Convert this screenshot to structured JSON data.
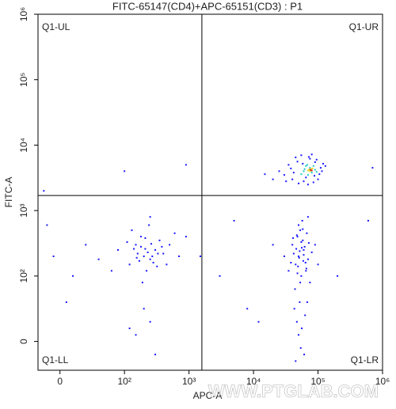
{
  "chart_data": {
    "type": "scatter",
    "title": "FITC-65147(CD4)+APC-65151(CD3) : P1",
    "x_label": "APC-A",
    "y_label": "FITC-A",
    "scale": "biexponential",
    "xlim": [
      -34,
      1000000
    ],
    "ylim": [
      -44,
      1000000
    ],
    "xticks": [
      0,
      {
        "value": 100,
        "label": "10²"
      },
      {
        "value": 1000,
        "label": "10³"
      },
      {
        "value": 10000,
        "label": "10⁴"
      },
      {
        "value": 100000,
        "label": "10⁵"
      },
      {
        "value": 1000000,
        "label": "10⁶"
      }
    ],
    "yticks": [
      0,
      {
        "value": 100,
        "label": "10²"
      },
      {
        "value": 1000,
        "label": "10³"
      },
      {
        "value": 10000,
        "label": "10⁴"
      },
      {
        "value": 100000,
        "label": "10⁵"
      },
      {
        "value": 1000000,
        "label": "10⁶"
      }
    ],
    "gate": {
      "x": 1585,
      "y": 1700
    },
    "quadrants": {
      "ul": "Q1-UL",
      "ur": "Q1-UR",
      "ll": "Q1-LL",
      "lr": "Q1-LR"
    },
    "watermark": "WWW.PTGLAB.COM",
    "series": [
      {
        "color": "#1a1aff",
        "x": [
          200,
          150,
          250,
          300,
          120,
          180,
          400,
          220,
          90,
          350,
          160,
          280,
          500,
          130,
          210,
          260,
          60,
          700,
          190,
          320,
          240,
          170,
          110,
          450,
          230,
          140,
          380,
          200,
          40,
          600,
          270,
          155,
          210,
          330,
          80,
          120,
          900,
          20,
          250,
          180,
          300,
          150,
          250,
          -10,
          10,
          50000,
          45000,
          60000,
          55000,
          40000,
          70000,
          48000,
          52000,
          65000,
          58000,
          42000,
          75000,
          47000,
          53000,
          62000,
          38000,
          80000,
          56000,
          44000,
          67000,
          50000,
          59000,
          46000,
          72000,
          54000,
          49000,
          63000,
          41000,
          57000,
          51000,
          68000,
          45000,
          60000,
          35000,
          90000,
          55000,
          48000,
          64000,
          52000,
          43000,
          70000,
          61000,
          47000,
          56000,
          66000,
          30000,
          100000,
          53000,
          58000,
          50000,
          40000,
          90000,
          30000,
          110000,
          50000,
          75000,
          35000,
          100000,
          60000,
          45000,
          85000,
          25000,
          120000,
          55000,
          70000,
          38000,
          95000,
          65000,
          42000,
          105000,
          20000,
          80000,
          48000,
          115000,
          32000,
          15000,
          130000,
          58000,
          88000,
          72000,
          100,
          900,
          -20,
          -25,
          3000,
          8000,
          20000,
          1500,
          5000,
          12000,
          200000,
          700000,
          600000
        ],
        "y": [
          200,
          300,
          180,
          250,
          150,
          400,
          220,
          120,
          250,
          350,
          220,
          160,
          300,
          500,
          260,
          310,
          180,
          200,
          90,
          140,
          600,
          170,
          330,
          150,
          230,
          260,
          280,
          50,
          300,
          450,
          200,
          190,
          380,
          220,
          120,
          20,
          400,
          100,
          800,
          280,
          -20,
          10,
          30,
          200,
          60,
          200,
          150,
          250,
          100,
          300,
          180,
          400,
          60,
          120,
          350,
          220,
          90,
          30,
          500,
          280,
          160,
          230,
          20,
          80,
          450,
          600,
          170,
          260,
          320,
          -10,
          140,
          40,
          380,
          700,
          190,
          60,
          -30,
          210,
          120,
          300,
          330,
          110,
          160,
          240,
          50,
          800,
          -20,
          420,
          270,
          130,
          200,
          150,
          90,
          520,
          10,
          3000,
          5500,
          3500,
          4500,
          2600,
          6200,
          5000,
          3000,
          2800,
          6500,
          2700,
          4000,
          5200,
          7000,
          2500,
          4400,
          6000,
          3200,
          3800,
          3600,
          3000,
          7200,
          5600,
          4000,
          2800,
          3600,
          4800,
          5200,
          3400,
          6600,
          4000,
          5000,
          600,
          2000,
          100,
          50,
          300,
          200,
          700,
          30,
          100,
          4500,
          700
        ]
      },
      {
        "color": "#20c8c8",
        "x": [
          60000,
          75000,
          80000,
          65000,
          55000,
          90000,
          70000,
          85000,
          62000,
          78000,
          68000,
          95000
        ],
        "y": [
          4000,
          4500,
          3800,
          4800,
          3600,
          4200,
          3500,
          4800,
          4300,
          4100,
          5000,
          3900
        ]
      },
      {
        "color": "#e8e020",
        "x": [
          72000,
          78000,
          75000,
          82000,
          70000
        ],
        "y": [
          4200,
          4300,
          4000,
          4400,
          4100
        ]
      },
      {
        "color": "#e02020",
        "x": [
          76000,
          80000
        ],
        "y": [
          4200,
          4100
        ]
      }
    ]
  }
}
